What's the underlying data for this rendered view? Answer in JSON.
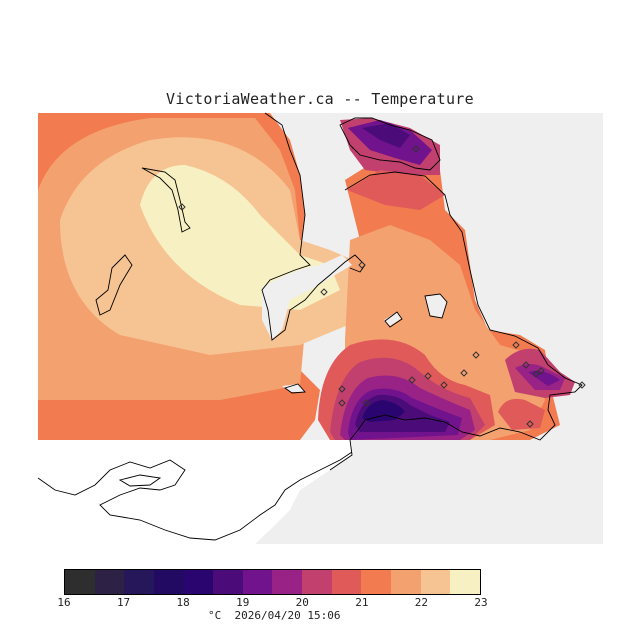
{
  "title": "VictoriaWeather.ca -- Temperature",
  "legend": {
    "colors": [
      "#2e2e2e",
      "#2d2145",
      "#26175a",
      "#220a62",
      "#2a0570",
      "#4b0c7a",
      "#71138c",
      "#992286",
      "#c1406e",
      "#e05a5a",
      "#f27c4f",
      "#f4a170",
      "#f6c493",
      "#f7f0c2"
    ],
    "ticks": [
      "16",
      "17",
      "18",
      "19",
      "20",
      "21",
      "22",
      "23"
    ],
    "unit": "°C",
    "timestamp": "2026/04/20 15:06"
  },
  "map": {
    "land_color": "#ffffff",
    "no_data_color": "#efefef",
    "coast_color": "#000000",
    "station_marker": "diamond"
  }
}
